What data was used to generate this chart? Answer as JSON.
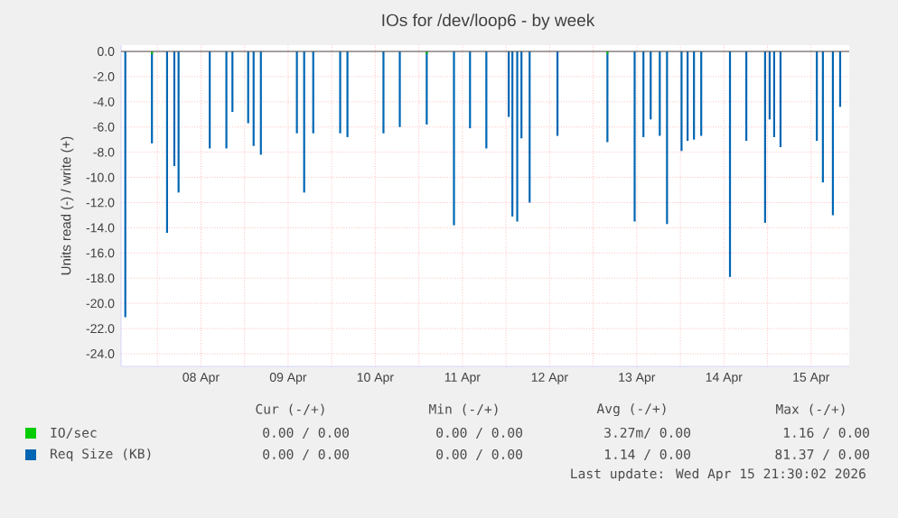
{
  "chart_data": {
    "type": "bar",
    "title": "IOs for /dev/loop6 - by week",
    "ylabel": "Units read (-) / write (+)",
    "xlim": [
      "2026-04-07T14:00",
      "2026-04-15T22:30"
    ],
    "xticks": [
      {
        "value": "2026-04-08T00:00",
        "label": null
      },
      {
        "value": "2026-04-08T12:00",
        "label": "08 Apr"
      },
      {
        "value": "2026-04-09T00:00",
        "label": null
      },
      {
        "value": "2026-04-09T12:00",
        "label": "09 Apr"
      },
      {
        "value": "2026-04-10T00:00",
        "label": null
      },
      {
        "value": "2026-04-10T12:00",
        "label": "10 Apr"
      },
      {
        "value": "2026-04-11T00:00",
        "label": null
      },
      {
        "value": "2026-04-11T12:00",
        "label": "11 Apr"
      },
      {
        "value": "2026-04-12T00:00",
        "label": null
      },
      {
        "value": "2026-04-12T12:00",
        "label": "12 Apr"
      },
      {
        "value": "2026-04-13T00:00",
        "label": null
      },
      {
        "value": "2026-04-13T12:00",
        "label": "13 Apr"
      },
      {
        "value": "2026-04-14T00:00",
        "label": null
      },
      {
        "value": "2026-04-14T12:00",
        "label": "14 Apr"
      },
      {
        "value": "2026-04-15T00:00",
        "label": null
      },
      {
        "value": "2026-04-15T12:00",
        "label": "15 Apr"
      }
    ],
    "ylim": [
      -25,
      0.5
    ],
    "yticks": [
      {
        "value": 0,
        "label": "0.0"
      },
      {
        "value": -2,
        "label": "-2.0"
      },
      {
        "value": -4,
        "label": "-4.0"
      },
      {
        "value": -6,
        "label": "-6.0"
      },
      {
        "value": -8,
        "label": "-8.0"
      },
      {
        "value": -10,
        "label": "-10.0"
      },
      {
        "value": -12,
        "label": "-12.0"
      },
      {
        "value": -14,
        "label": "-14.0"
      },
      {
        "value": -16,
        "label": "-16.0"
      },
      {
        "value": -18,
        "label": "-18.0"
      },
      {
        "value": -20,
        "label": "-20.0"
      },
      {
        "value": -22,
        "label": "-22.0"
      },
      {
        "value": -24,
        "label": "-24.0"
      }
    ],
    "grid": true,
    "legend": "bottom",
    "series": [
      {
        "name": "Req Size (KB)",
        "color": "#0066b3",
        "x": [
          "2026-04-07T15:10",
          "2026-04-07T22:30",
          "2026-04-08T02:40",
          "2026-04-08T04:40",
          "2026-04-08T05:50",
          "2026-04-08T14:25",
          "2026-04-08T19:00",
          "2026-04-08T20:40",
          "2026-04-09T01:00",
          "2026-04-09T02:30",
          "2026-04-09T04:30",
          "2026-04-09T14:25",
          "2026-04-09T16:25",
          "2026-04-09T18:55",
          "2026-04-10T02:20",
          "2026-04-10T04:20",
          "2026-04-10T14:15",
          "2026-04-10T18:45",
          "2026-04-11T02:10",
          "2026-04-11T09:40",
          "2026-04-11T14:05",
          "2026-04-11T18:35",
          "2026-04-12T00:45",
          "2026-04-12T01:45",
          "2026-04-12T03:05",
          "2026-04-12T04:15",
          "2026-04-12T06:30",
          "2026-04-12T14:10",
          "2026-04-13T03:55",
          "2026-04-13T11:25",
          "2026-04-13T13:50",
          "2026-04-13T15:50",
          "2026-04-13T18:20",
          "2026-04-13T20:20",
          "2026-04-14T00:20",
          "2026-04-14T02:00",
          "2026-04-14T03:45",
          "2026-04-14T05:45",
          "2026-04-14T13:40",
          "2026-04-14T18:10",
          "2026-04-14T23:20",
          "2026-04-15T00:35",
          "2026-04-15T01:50",
          "2026-04-15T03:35",
          "2026-04-15T13:35",
          "2026-04-15T15:15",
          "2026-04-15T18:00",
          "2026-04-15T20:00"
        ],
        "values": [
          -21.1,
          -7.3,
          -14.4,
          -9.1,
          -11.2,
          -7.7,
          -7.7,
          -4.8,
          -5.7,
          -7.5,
          -8.2,
          -6.5,
          -11.2,
          -6.5,
          -6.5,
          -6.8,
          -6.5,
          -6.0,
          -5.8,
          -13.8,
          -6.1,
          -7.7,
          -5.2,
          -13.1,
          -13.5,
          -6.9,
          -12.0,
          -6.7,
          -7.2,
          -13.5,
          -6.8,
          -5.4,
          -6.7,
          -13.7,
          -7.9,
          -7.1,
          -7.0,
          -6.7,
          -17.9,
          -7.1,
          -13.6,
          -5.4,
          -6.8,
          -7.6,
          -7.1,
          -10.4,
          -13.0,
          -4.4
        ]
      },
      {
        "name": "IO/sec",
        "color": "#00cc00",
        "x": [
          "2026-04-07T22:30",
          "2026-04-11T02:10",
          "2026-04-13T03:55"
        ],
        "values": [
          -0.2,
          -0.2,
          -0.2
        ]
      }
    ],
    "annotations": [
      "Cur (-/+)",
      "Min (-/+)",
      "Avg (-/+)",
      "Max (-/+)",
      "0.00 / 0.00",
      "0.00 / 0.00",
      "3.27m/ 0.00",
      "1.16 / 0.00",
      "0.00 / 0.00",
      "0.00 / 0.00",
      "1.14 / 0.00",
      "81.37 / 0.00",
      "Last update: Wed Apr 15 21:30:02 2026"
    ]
  }
}
